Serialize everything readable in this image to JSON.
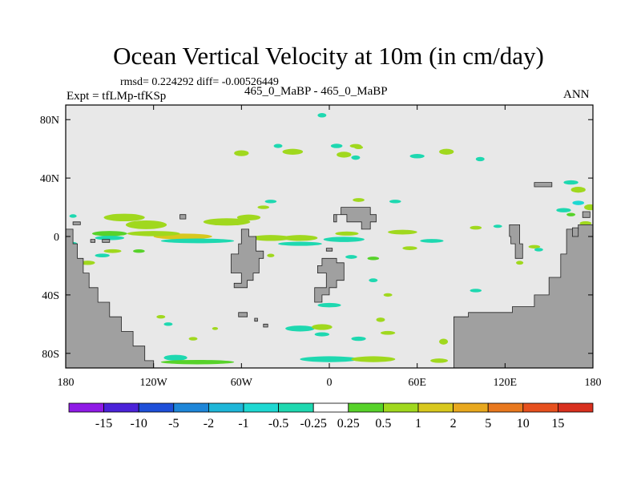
{
  "title": "Ocean Vertical Velocity at 10m (in cm/day)",
  "stats_line": "rmsd= 0.224292 diff= -0.00526449",
  "left_label": "Expt = tfLMp-tfKSp",
  "center_label": "465_0_MaBP - 465_0_MaBP",
  "right_label": "ANN",
  "map": {
    "projection": "cylindrical equidistant",
    "lon_range": [
      -180,
      180
    ],
    "lat_range": [
      -90,
      90
    ],
    "x_ticks": [
      {
        "lon": -180,
        "label": "180"
      },
      {
        "lon": -120,
        "label": "120W"
      },
      {
        "lon": -60,
        "label": "60W"
      },
      {
        "lon": 0,
        "label": "0"
      },
      {
        "lon": 60,
        "label": "60E"
      },
      {
        "lon": 120,
        "label": "120E"
      },
      {
        "lon": 180,
        "label": "180"
      }
    ],
    "y_ticks": [
      {
        "lat": 80,
        "label": "80N"
      },
      {
        "lat": 40,
        "label": "40N"
      },
      {
        "lat": 0,
        "label": "0"
      },
      {
        "lat": -40,
        "label": "40S"
      },
      {
        "lat": -80,
        "label": "80S"
      }
    ],
    "land_color": "#a0a0a0",
    "background_color": "#e8e8e8",
    "land": [
      [
        [
          -180,
          5
        ],
        [
          -175,
          5
        ],
        [
          -175,
          -5
        ],
        [
          -172,
          -5
        ],
        [
          -172,
          -15
        ],
        [
          -168,
          -15
        ],
        [
          -168,
          -25
        ],
        [
          -164,
          -25
        ],
        [
          -164,
          -35
        ],
        [
          -158,
          -35
        ],
        [
          -158,
          -45
        ],
        [
          -150,
          -45
        ],
        [
          -150,
          -55
        ],
        [
          -142,
          -55
        ],
        [
          -142,
          -65
        ],
        [
          -134,
          -65
        ],
        [
          -134,
          -75
        ],
        [
          -126,
          -75
        ],
        [
          -126,
          -85
        ],
        [
          -120,
          -85
        ],
        [
          -120,
          -90
        ],
        [
          -180,
          -90
        ]
      ],
      [
        [
          -180,
          -90
        ],
        [
          85,
          -90
        ],
        [
          85,
          -55
        ],
        [
          95,
          -55
        ],
        [
          95,
          -52
        ],
        [
          125,
          -52
        ],
        [
          125,
          -48
        ],
        [
          140,
          -48
        ],
        [
          140,
          -40
        ],
        [
          150,
          -40
        ],
        [
          150,
          -28
        ],
        [
          158,
          -28
        ],
        [
          158,
          -12
        ],
        [
          162,
          -12
        ],
        [
          162,
          5
        ],
        [
          170,
          5
        ],
        [
          170,
          8
        ],
        [
          180,
          8
        ],
        [
          180,
          -90
        ]
      ],
      [
        [
          -60,
          5
        ],
        [
          -55,
          5
        ],
        [
          -55,
          0
        ],
        [
          -50,
          0
        ],
        [
          -50,
          -10
        ],
        [
          -45,
          -10
        ],
        [
          -45,
          -15
        ],
        [
          -48,
          -15
        ],
        [
          -48,
          -25
        ],
        [
          -52,
          -25
        ],
        [
          -52,
          -30
        ],
        [
          -56,
          -30
        ],
        [
          -56,
          -35
        ],
        [
          -65,
          -35
        ],
        [
          -65,
          -32
        ],
        [
          -60,
          -32
        ],
        [
          -60,
          -25
        ],
        [
          -67,
          -25
        ],
        [
          -67,
          -12
        ],
        [
          -62,
          -12
        ],
        [
          -62,
          -5
        ],
        [
          -60,
          -5
        ]
      ],
      [
        [
          -5,
          -15
        ],
        [
          5,
          -15
        ],
        [
          5,
          -18
        ],
        [
          10,
          -18
        ],
        [
          10,
          -30
        ],
        [
          5,
          -30
        ],
        [
          5,
          -35
        ],
        [
          0,
          -35
        ],
        [
          0,
          -40
        ],
        [
          -5,
          -40
        ],
        [
          -5,
          -45
        ],
        [
          -10,
          -45
        ],
        [
          -10,
          -35
        ],
        [
          -2,
          -35
        ],
        [
          -2,
          -25
        ],
        [
          -8,
          -25
        ],
        [
          -8,
          -20
        ],
        [
          -5,
          -20
        ]
      ],
      [
        [
          3,
          15
        ],
        [
          8,
          15
        ],
        [
          8,
          20
        ],
        [
          28,
          20
        ],
        [
          28,
          15
        ],
        [
          32,
          15
        ],
        [
          32,
          10
        ],
        [
          28,
          10
        ],
        [
          28,
          5
        ],
        [
          22,
          5
        ],
        [
          22,
          10
        ],
        [
          12,
          10
        ],
        [
          12,
          15
        ],
        [
          5,
          15
        ],
        [
          5,
          10
        ],
        [
          3,
          10
        ]
      ],
      [
        [
          123,
          8
        ],
        [
          130,
          8
        ],
        [
          130,
          -5
        ],
        [
          132,
          -5
        ],
        [
          132,
          -15
        ],
        [
          127,
          -15
        ],
        [
          127,
          -5
        ],
        [
          124,
          -5
        ],
        [
          124,
          0
        ],
        [
          123,
          0
        ]
      ],
      [
        [
          -175,
          10
        ],
        [
          -170,
          10
        ],
        [
          -170,
          8
        ],
        [
          -175,
          8
        ]
      ],
      [
        [
          -62,
          -52
        ],
        [
          -56,
          -52
        ],
        [
          -56,
          -55
        ],
        [
          -62,
          -55
        ]
      ],
      [
        [
          -45,
          -60
        ],
        [
          -42,
          -60
        ],
        [
          -42,
          -62
        ],
        [
          -45,
          -62
        ]
      ],
      [
        [
          -51,
          -56
        ],
        [
          -49,
          -56
        ],
        [
          -49,
          -58
        ],
        [
          -51,
          -58
        ]
      ],
      [
        [
          -163,
          -2
        ],
        [
          -160,
          -2
        ],
        [
          -160,
          -4
        ],
        [
          -163,
          -4
        ]
      ],
      [
        [
          -155,
          -2
        ],
        [
          -150,
          -2
        ],
        [
          -150,
          -4
        ],
        [
          -155,
          -4
        ]
      ],
      [
        [
          173,
          17
        ],
        [
          178,
          17
        ],
        [
          178,
          13
        ],
        [
          173,
          13
        ]
      ],
      [
        [
          166,
          6
        ],
        [
          170,
          6
        ],
        [
          170,
          0
        ],
        [
          166,
          0
        ]
      ],
      [
        [
          140,
          37
        ],
        [
          152,
          37
        ],
        [
          152,
          34
        ],
        [
          140,
          34
        ]
      ],
      [
        [
          -102,
          15
        ],
        [
          -98,
          15
        ],
        [
          -98,
          12
        ],
        [
          -102,
          12
        ]
      ],
      [
        [
          -2,
          -8
        ],
        [
          2,
          -8
        ],
        [
          2,
          -10
        ],
        [
          -2,
          -10
        ]
      ]
    ],
    "anomaly_blobs": [
      {
        "lon": -140,
        "lat": 13,
        "rx": 14,
        "ry": 2.6,
        "value": 0.6
      },
      {
        "lon": -125,
        "lat": 8,
        "rx": 14,
        "ry": 3,
        "value": 0.6
      },
      {
        "lon": -70,
        "lat": 10,
        "rx": 16,
        "ry": 2.5,
        "value": 0.6
      },
      {
        "lon": -55,
        "lat": 13,
        "rx": 8,
        "ry": 2,
        "value": 0.6
      },
      {
        "lon": -150,
        "lat": 2,
        "rx": 12,
        "ry": 1.8,
        "value": 0.4
      },
      {
        "lon": -150,
        "lat": -1,
        "rx": 10,
        "ry": 1.5,
        "value": -0.5
      },
      {
        "lon": -100,
        "lat": 0,
        "rx": 20,
        "ry": 2,
        "value": 1.5
      },
      {
        "lon": -120,
        "lat": 2,
        "rx": 18,
        "ry": 1.8,
        "value": 0.6
      },
      {
        "lon": -90,
        "lat": -3,
        "rx": 25,
        "ry": 1.6,
        "value": -0.4
      },
      {
        "lon": -40,
        "lat": -1,
        "rx": 14,
        "ry": 2,
        "value": 0.7
      },
      {
        "lon": -20,
        "lat": -1,
        "rx": 12,
        "ry": 2,
        "value": 0.6
      },
      {
        "lon": 10,
        "lat": -2,
        "rx": 14,
        "ry": 1.8,
        "value": -0.5
      },
      {
        "lon": -20,
        "lat": -5,
        "rx": 15,
        "ry": 1.4,
        "value": -0.4
      },
      {
        "lon": 12,
        "lat": 2,
        "rx": 8,
        "ry": 1.4,
        "value": 0.6
      },
      {
        "lon": 50,
        "lat": 3,
        "rx": 10,
        "ry": 1.6,
        "value": 0.5
      },
      {
        "lon": 70,
        "lat": -3,
        "rx": 8,
        "ry": 1.3,
        "value": -0.4
      },
      {
        "lon": -25,
        "lat": 58,
        "rx": 7,
        "ry": 2,
        "value": 0.6
      },
      {
        "lon": 10,
        "lat": 56,
        "rx": 5,
        "ry": 2,
        "value": 0.6
      },
      {
        "lon": 18,
        "lat": 54,
        "rx": 3,
        "ry": 1.5,
        "value": -0.4
      },
      {
        "lon": -60,
        "lat": 57,
        "rx": 5,
        "ry": 2,
        "value": 0.6
      },
      {
        "lon": 5,
        "lat": 62,
        "rx": 4,
        "ry": 1.5,
        "value": -0.5
      },
      {
        "lon": 20,
        "lat": 61,
        "rx": 3,
        "ry": 1.2,
        "value": 0.5
      },
      {
        "lon": 60,
        "lat": 55,
        "rx": 5,
        "ry": 1.5,
        "value": -0.4
      },
      {
        "lon": 80,
        "lat": 58,
        "rx": 5,
        "ry": 2,
        "value": 0.5
      },
      {
        "lon": 103,
        "lat": 53,
        "rx": 3,
        "ry": 1.5,
        "value": -0.4
      },
      {
        "lon": 18,
        "lat": 62,
        "rx": 4,
        "ry": 1.3,
        "value": 0.6
      },
      {
        "lon": -35,
        "lat": 62,
        "rx": 3,
        "ry": 1.4,
        "value": -0.4
      },
      {
        "lon": -5,
        "lat": 83,
        "rx": 3,
        "ry": 1.5,
        "value": -0.4
      },
      {
        "lon": 165,
        "lat": 37,
        "rx": 5,
        "ry": 1.5,
        "value": -0.5
      },
      {
        "lon": 170,
        "lat": 32,
        "rx": 5,
        "ry": 2,
        "value": 0.6
      },
      {
        "lon": 178,
        "lat": 20,
        "rx": 4,
        "ry": 2,
        "value": 0.6
      },
      {
        "lon": 160,
        "lat": 18,
        "rx": 5,
        "ry": 1.5,
        "value": -0.4
      },
      {
        "lon": 170,
        "lat": 23,
        "rx": 4,
        "ry": 1.5,
        "value": -0.6
      },
      {
        "lon": 20,
        "lat": 25,
        "rx": 4,
        "ry": 1.3,
        "value": 0.6
      },
      {
        "lon": 45,
        "lat": 24,
        "rx": 4,
        "ry": 1.2,
        "value": -0.4
      },
      {
        "lon": -40,
        "lat": 24,
        "rx": 4,
        "ry": 1.2,
        "value": -0.4
      },
      {
        "lon": -45,
        "lat": 20,
        "rx": 4,
        "ry": 1.2,
        "value": 0.6
      },
      {
        "lon": -175,
        "lat": 14,
        "rx": 2.5,
        "ry": 1.2,
        "value": -0.4
      },
      {
        "lon": 140,
        "lat": -7,
        "rx": 4,
        "ry": 1.2,
        "value": 0.5
      },
      {
        "lon": 100,
        "lat": 6,
        "rx": 4,
        "ry": 1.3,
        "value": 0.6
      },
      {
        "lon": 115,
        "lat": 7,
        "rx": 3,
        "ry": 1.1,
        "value": -0.4
      },
      {
        "lon": -148,
        "lat": -10,
        "rx": 6,
        "ry": 1.3,
        "value": 0.5
      },
      {
        "lon": -155,
        "lat": -13,
        "rx": 5,
        "ry": 1.3,
        "value": -0.4
      },
      {
        "lon": -40,
        "lat": -13,
        "rx": 2.5,
        "ry": 1.2,
        "value": 0.5
      },
      {
        "lon": 15,
        "lat": -14,
        "rx": 4,
        "ry": 1.3,
        "value": -0.4
      },
      {
        "lon": 30,
        "lat": -15,
        "rx": 4,
        "ry": 1.2,
        "value": 0.4
      },
      {
        "lon": 30,
        "lat": -30,
        "rx": 3,
        "ry": 1.3,
        "value": -0.4
      },
      {
        "lon": 0,
        "lat": -47,
        "rx": 8,
        "ry": 1.5,
        "value": -0.4
      },
      {
        "lon": 40,
        "lat": -40,
        "rx": 3,
        "ry": 1.2,
        "value": 0.5
      },
      {
        "lon": 100,
        "lat": -37,
        "rx": 4,
        "ry": 1.2,
        "value": -0.5
      },
      {
        "lon": 35,
        "lat": -57,
        "rx": 3,
        "ry": 1.5,
        "value": 0.6
      },
      {
        "lon": -5,
        "lat": -67,
        "rx": 5,
        "ry": 1.4,
        "value": -0.4
      },
      {
        "lon": -20,
        "lat": -63,
        "rx": 10,
        "ry": 2,
        "value": -0.5
      },
      {
        "lon": -5,
        "lat": -62,
        "rx": 7,
        "ry": 2,
        "value": 0.6
      },
      {
        "lon": 20,
        "lat": -70,
        "rx": 5,
        "ry": 1.5,
        "value": -0.4
      },
      {
        "lon": 40,
        "lat": -66,
        "rx": 5,
        "ry": 1.3,
        "value": 0.5
      },
      {
        "lon": 0,
        "lat": -84,
        "rx": 20,
        "ry": 2,
        "value": -0.4
      },
      {
        "lon": 30,
        "lat": -84,
        "rx": 15,
        "ry": 2,
        "value": 0.5
      },
      {
        "lon": -105,
        "lat": -83,
        "rx": 8,
        "ry": 2,
        "value": -0.4
      },
      {
        "lon": 78,
        "lat": -72,
        "rx": 3,
        "ry": 2,
        "value": 0.5
      },
      {
        "lon": 75,
        "lat": -85,
        "rx": 6,
        "ry": 1.5,
        "value": 0.6
      },
      {
        "lon": -90,
        "lat": -86,
        "rx": 25,
        "ry": 1.5,
        "value": 0.3
      },
      {
        "lon": -115,
        "lat": -55,
        "rx": 3,
        "ry": 1.2,
        "value": 0.6
      },
      {
        "lon": -110,
        "lat": -60,
        "rx": 3,
        "ry": 1.2,
        "value": -0.4
      },
      {
        "lon": -138,
        "lat": -74,
        "rx": 4,
        "ry": 1.4,
        "value": -0.4
      },
      {
        "lon": -78,
        "lat": -63,
        "rx": 2,
        "ry": 1,
        "value": 0.6
      },
      {
        "lon": -93,
        "lat": -70,
        "rx": 3,
        "ry": 1.2,
        "value": 0.5
      },
      {
        "lon": 143,
        "lat": -9,
        "rx": 3,
        "ry": 1.2,
        "value": -0.5
      },
      {
        "lon": 130,
        "lat": -18,
        "rx": 2.5,
        "ry": 1.3,
        "value": 0.6
      },
      {
        "lon": 175,
        "lat": 9,
        "rx": 4,
        "ry": 1.4,
        "value": 0.6
      },
      {
        "lon": 55,
        "lat": -8,
        "rx": 5,
        "ry": 1.3,
        "value": 0.5
      },
      {
        "lon": -130,
        "lat": -10,
        "rx": 4,
        "ry": 1.2,
        "value": 0.4
      },
      {
        "lon": -175,
        "lat": -5,
        "rx": 3,
        "ry": 1.2,
        "value": -0.4
      },
      {
        "lon": -165,
        "lat": -18,
        "rx": 5,
        "ry": 1.5,
        "value": 0.5
      },
      {
        "lon": 165,
        "lat": 15,
        "rx": 3,
        "ry": 1.2,
        "value": 0.4
      }
    ]
  },
  "colorbar": {
    "levels": [
      "-15",
      "-10",
      "-5",
      "-2",
      "-1",
      "-0.5",
      "-0.25",
      "0.25",
      "0.5",
      "1",
      "2",
      "5",
      "10",
      "15"
    ],
    "colors": [
      "#8f1ae6",
      "#4b22d8",
      "#1e4fd8",
      "#1e86d8",
      "#1eb6d8",
      "#1ed8d2",
      "#1ed8b0",
      "#ffffff",
      "#57d22a",
      "#a0d81e",
      "#d8c81e",
      "#e8a81e",
      "#e8781e",
      "#e6501e",
      "#d8301e"
    ]
  }
}
